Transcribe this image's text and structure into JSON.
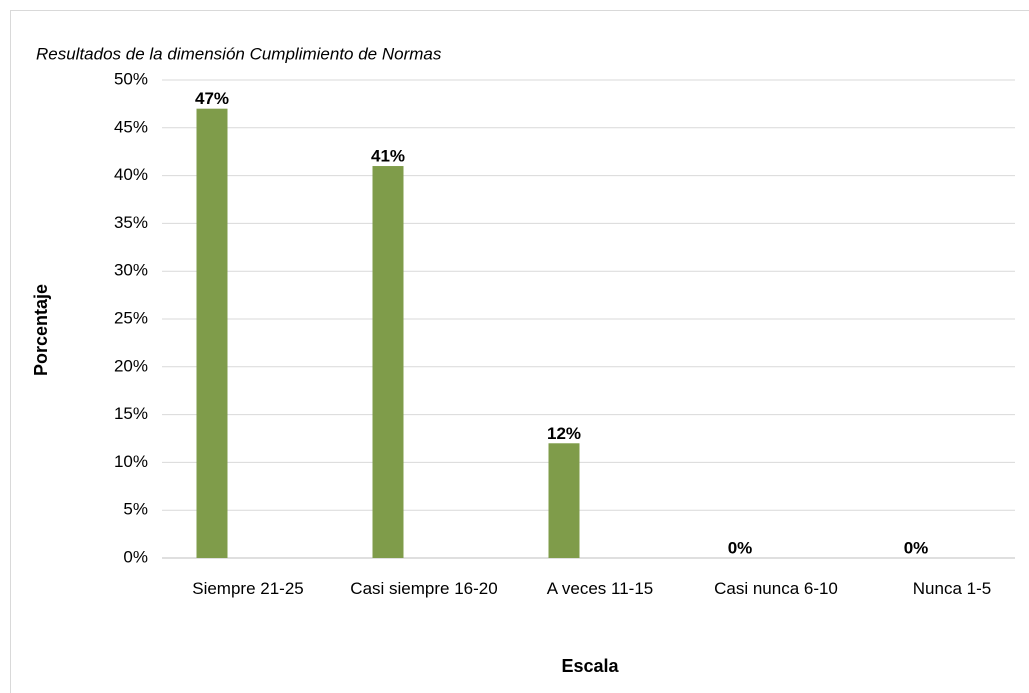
{
  "chart_data": {
    "type": "bar",
    "title": "Resultados de la dimensión Cumplimiento de Normas",
    "x_label": "Escala",
    "y_label": "Porcentaje",
    "categories": [
      "Siempre 21-25",
      "Casi siempre 16-20",
      "A veces 11-15",
      "Casi nunca 6-10",
      "Nunca 1-5"
    ],
    "values": [
      47,
      41,
      12,
      0,
      0
    ],
    "value_labels": [
      "47%",
      "41%",
      "12%",
      "0%",
      "0%"
    ],
    "color": "#7f9c4a",
    "ylim": [
      0,
      50
    ],
    "yticks": [
      {
        "value": 0,
        "label": "0%"
      },
      {
        "value": 5,
        "label": "5%"
      },
      {
        "value": 10,
        "label": "10%"
      },
      {
        "value": 15,
        "label": "15%"
      },
      {
        "value": 20,
        "label": "20%"
      },
      {
        "value": 25,
        "label": "25%"
      },
      {
        "value": 30,
        "label": "30%"
      },
      {
        "value": 35,
        "label": "35%"
      },
      {
        "value": 40,
        "label": "40%"
      },
      {
        "value": 45,
        "label": "45%"
      },
      {
        "value": 50,
        "label": "50%"
      }
    ],
    "grid": true
  }
}
